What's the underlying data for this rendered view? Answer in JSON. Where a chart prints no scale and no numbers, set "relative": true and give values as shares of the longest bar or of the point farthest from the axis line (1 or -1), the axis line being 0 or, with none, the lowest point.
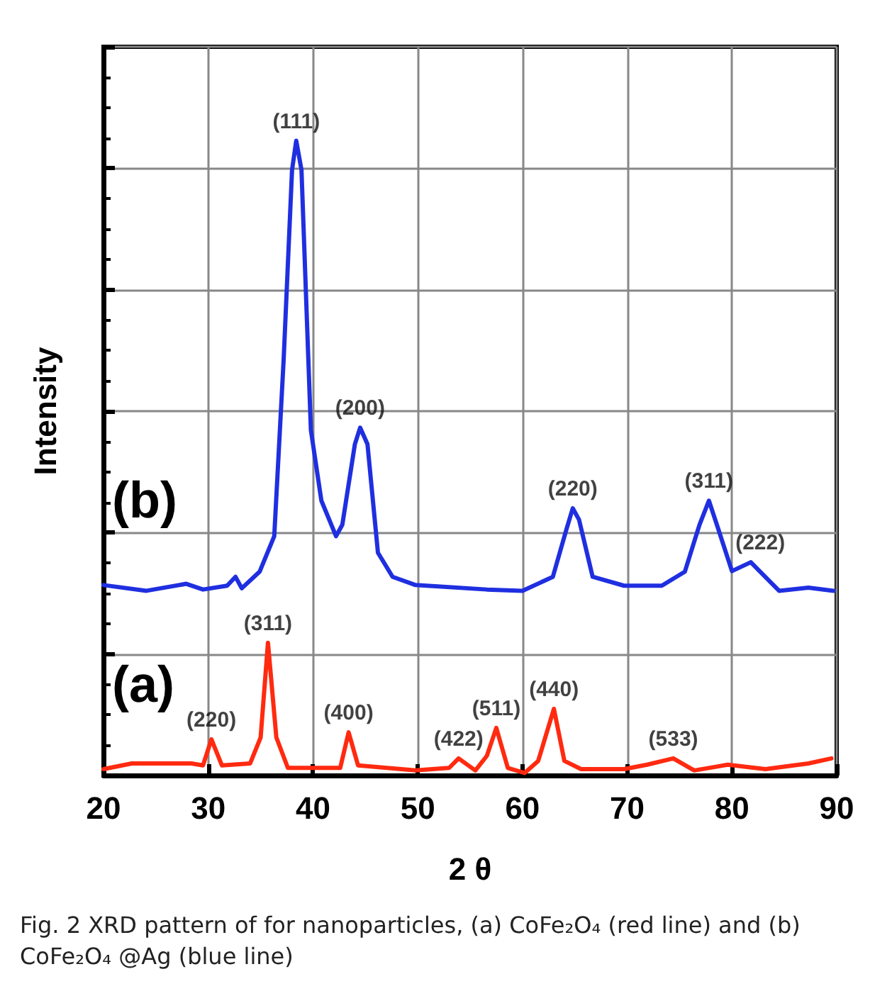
{
  "chart_data": {
    "type": "line",
    "relative": true,
    "xlabel": "2 θ",
    "ylabel": "Intensity",
    "xlim": [
      20,
      90
    ],
    "xticks": [
      20,
      30,
      40,
      50,
      60,
      70,
      80,
      90
    ],
    "grid": true,
    "marker": "none",
    "line_style": "solid",
    "series": [
      {
        "name": "(b)",
        "color": "#1f2fe0",
        "x": [
          20,
          24.1,
          27.9,
          29.5,
          31.8,
          32.6,
          33.2,
          34.9,
          36.3,
          37.2,
          38.0,
          38.4,
          38.9,
          39.8,
          40.8,
          42.2,
          42.8,
          44.0,
          44.5,
          45.2,
          46.2,
          47.6,
          49.8,
          56.6,
          60.0,
          62.9,
          64.2,
          64.8,
          65.4,
          66.7,
          69.7,
          73.3,
          75.5,
          76.9,
          77.8,
          78.7,
          80.0,
          81.8,
          82.7,
          84.5,
          87.3,
          89.7
        ],
        "values": [
          0.3,
          0.291,
          0.302,
          0.293,
          0.299,
          0.313,
          0.295,
          0.321,
          0.377,
          0.656,
          0.954,
          1.0,
          0.954,
          0.544,
          0.433,
          0.377,
          0.395,
          0.522,
          0.548,
          0.522,
          0.351,
          0.313,
          0.3,
          0.293,
          0.291,
          0.313,
          0.388,
          0.421,
          0.403,
          0.313,
          0.299,
          0.299,
          0.321,
          0.395,
          0.433,
          0.388,
          0.322,
          0.336,
          0.321,
          0.291,
          0.296,
          0.291
        ]
      },
      {
        "name": "(a)",
        "color": "#ff2a10",
        "x": [
          20,
          22.7,
          28.4,
          29.5,
          30.3,
          31.3,
          34.0,
          35.0,
          35.7,
          36.5,
          37.6,
          42.6,
          43.4,
          44.3,
          49.8,
          53.0,
          53.9,
          55.5,
          56.6,
          57.5,
          58.6,
          60.2,
          61.5,
          63.0,
          64.0,
          65.6,
          69.7,
          71.9,
          74.4,
          76.4,
          79.6,
          83.2,
          87.3,
          89.5
        ],
        "values": [
          0.01,
          0.019,
          0.019,
          0.016,
          0.057,
          0.016,
          0.019,
          0.06,
          0.209,
          0.06,
          0.012,
          0.012,
          0.068,
          0.016,
          0.008,
          0.012,
          0.027,
          0.008,
          0.031,
          0.075,
          0.012,
          0.004,
          0.023,
          0.105,
          0.023,
          0.01,
          0.01,
          0.017,
          0.027,
          0.008,
          0.017,
          0.01,
          0.019,
          0.027
        ]
      }
    ],
    "annotations": [
      {
        "text": "(111)",
        "x": 38.4,
        "y": 1.0
      },
      {
        "text": "(200)",
        "x": 44.5,
        "y": 0.548
      },
      {
        "text": "(220)",
        "x": 64.8,
        "y": 0.421
      },
      {
        "text": "(311)",
        "x": 77.8,
        "y": 0.433
      },
      {
        "text": "(222)",
        "x": 82.7,
        "y": 0.336
      },
      {
        "text": "(220)",
        "x": 30.3,
        "y": 0.057
      },
      {
        "text": "(311)",
        "x": 35.7,
        "y": 0.209
      },
      {
        "text": "(400)",
        "x": 43.4,
        "y": 0.068
      },
      {
        "text": "(422)",
        "x": 53.9,
        "y": 0.027
      },
      {
        "text": "(511)",
        "x": 57.5,
        "y": 0.075
      },
      {
        "text": "(440)",
        "x": 63.0,
        "y": 0.105
      },
      {
        "text": "(533)",
        "x": 74.4,
        "y": 0.027
      },
      "Fig. 2 XRD pattern of for nanoparticles, (a) CoFe₂O₄ (red line) and (b) CoFe₂O₄ @Ag (blue line)"
    ]
  }
}
